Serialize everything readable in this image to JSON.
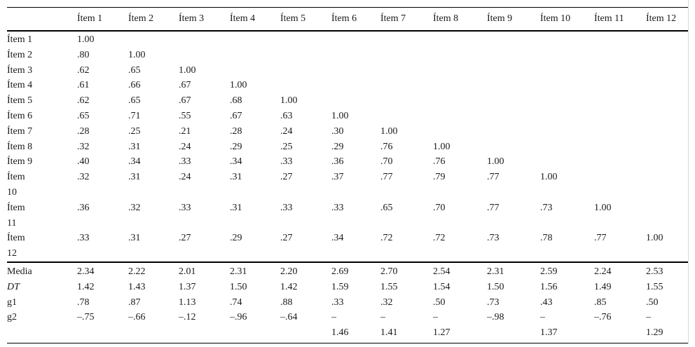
{
  "colors": {
    "background": "#ffffff",
    "text": "#1a1a1a",
    "rule": "#000000",
    "scan_artifact_line": "#d9d9d9"
  },
  "table": {
    "corner_label": "",
    "columns": [
      "Ítem 1",
      "Ítem 2",
      "Ítem 3",
      "Ítem 4",
      "Ítem 5",
      "Ítem 6",
      "Ítem 7",
      "Ítem 8",
      "Ítem 9",
      "Ítem 10",
      "Ítem 11",
      "Ítem 12"
    ],
    "rows": [
      {
        "label": "Ítem 1",
        "values": [
          "1.00"
        ]
      },
      {
        "label": "Ítem 2",
        "values": [
          ".80",
          "1.00"
        ]
      },
      {
        "label": "Ítem 3",
        "values": [
          ".62",
          ".65",
          "1.00"
        ]
      },
      {
        "label": "Ítem 4",
        "values": [
          ".61",
          ".66",
          ".67",
          "1.00"
        ]
      },
      {
        "label": "Ítem 5",
        "values": [
          ".62",
          ".65",
          ".67",
          ".68",
          "1.00"
        ]
      },
      {
        "label": "Ítem 6",
        "values": [
          ".65",
          ".71",
          ".55",
          ".67",
          ".63",
          "1.00"
        ]
      },
      {
        "label": "Ítem 7",
        "values": [
          ".28",
          ".25",
          ".21",
          ".28",
          ".24",
          ".30",
          "1.00"
        ]
      },
      {
        "label": "Ítem 8",
        "values": [
          ".32",
          ".31",
          ".24",
          ".29",
          ".25",
          ".29",
          ".76",
          "1.00"
        ]
      },
      {
        "label": "Ítem 9",
        "values": [
          ".40",
          ".34",
          ".33",
          ".34",
          ".33",
          ".36",
          ".70",
          ".76",
          "1.00"
        ]
      },
      {
        "label": "Ítem\n10",
        "values": [
          ".32",
          ".31",
          ".24",
          ".31",
          ".27",
          ".37",
          ".77",
          ".79",
          ".77",
          "1.00"
        ]
      },
      {
        "label": "Ítem\n11",
        "values": [
          ".36",
          ".32",
          ".33",
          ".31",
          ".33",
          ".33",
          ".65",
          ".70",
          ".77",
          ".73",
          "1.00"
        ]
      },
      {
        "label": "Ítem\n12",
        "values": [
          ".33",
          ".31",
          ".27",
          ".29",
          ".27",
          ".34",
          ".72",
          ".72",
          ".73",
          ".78",
          ".77",
          "1.00"
        ]
      }
    ],
    "summary_rows": [
      {
        "label": "Media",
        "italic": false,
        "values": [
          "2.34",
          "2.22",
          "2.01",
          "2.31",
          "2.20",
          "2.69",
          "2.70",
          "2.54",
          "2.31",
          "2.59",
          "2.24",
          "2.53"
        ]
      },
      {
        "label": "DT",
        "italic": true,
        "values": [
          "1.42",
          "1.43",
          "1.37",
          "1.50",
          "1.42",
          "1.59",
          "1.55",
          "1.54",
          "1.50",
          "1.56",
          "1.49",
          "1.55"
        ]
      },
      {
        "label": "g1",
        "italic": false,
        "values": [
          ".78",
          ".87",
          "1.13",
          ".74",
          ".88",
          ".33",
          ".32",
          ".50",
          ".73",
          ".43",
          ".85",
          ".50"
        ]
      },
      {
        "label": "g2",
        "italic": false,
        "values": [
          "–.75",
          "–.66",
          "–.12",
          "–.96",
          "–.64",
          "–\n1.46",
          "–\n1.41",
          "–\n1.27",
          "–.98",
          "–\n1.37",
          "–.76",
          "–\n1.29"
        ]
      }
    ]
  }
}
